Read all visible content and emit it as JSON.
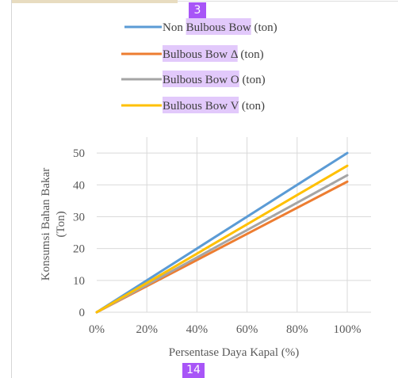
{
  "badges": {
    "top": "3",
    "bottom": "14"
  },
  "chart_data": {
    "type": "line",
    "x": [
      0,
      100
    ],
    "xlabel": "Persentase Daya Kapal (%)",
    "ylabel": "Konsumsi Bahan Bakar (Ton)",
    "ylabel_lines": [
      "Konsumsi Bahan Bakar",
      "(Ton)"
    ],
    "xlim": [
      0,
      100
    ],
    "ylim": [
      0,
      55
    ],
    "xticks": [
      0,
      20,
      40,
      60,
      80,
      100
    ],
    "xtick_labels": [
      "0%",
      "20%",
      "40%",
      "60%",
      "80%",
      "100%"
    ],
    "yticks": [
      0,
      10,
      20,
      30,
      40,
      50
    ],
    "ytick_labels": [
      "0",
      "10",
      "20",
      "30",
      "40",
      "50"
    ],
    "grid": true,
    "legend_position": "top",
    "series": [
      {
        "name": "Non Bulbous Bow (ton)",
        "legend_plain": "Non ",
        "legend_highlight": "Bulbous Bow",
        "legend_suffix": " (ton)",
        "color": "#5b9bd5",
        "values": [
          0,
          50
        ]
      },
      {
        "name": "Bulbous Bow Δ (ton)",
        "legend_plain": "",
        "legend_highlight": "Bulbous Bow Δ",
        "legend_suffix": " (ton)",
        "color": "#ed7d31",
        "values": [
          0,
          41
        ]
      },
      {
        "name": "Bulbous Bow O (ton)",
        "legend_plain": "",
        "legend_highlight": "Bulbous Bow O",
        "legend_suffix": " (ton)",
        "color": "#a5a5a5",
        "values": [
          0,
          43
        ]
      },
      {
        "name": "Bulbous Bow V (ton)",
        "legend_plain": "",
        "legend_highlight": "Bulbous Bow V",
        "legend_suffix": " (ton)",
        "color": "#ffc000",
        "values": [
          0,
          46
        ]
      }
    ]
  }
}
